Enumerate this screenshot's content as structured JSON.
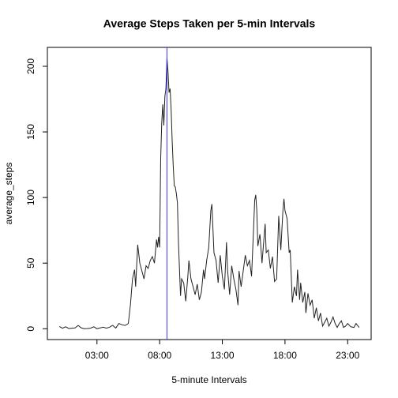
{
  "chart_data": {
    "type": "line",
    "title": "Average Steps Taken per 5-min Intervals",
    "x_label": "5-minute Intervals",
    "y_label": "average_steps",
    "x": [
      0,
      15,
      30,
      45,
      60,
      75,
      90,
      105,
      120,
      135,
      150,
      165,
      180,
      195,
      210,
      225,
      240,
      255,
      270,
      285,
      300,
      315,
      330,
      340,
      350,
      360,
      365,
      375,
      385,
      395,
      405,
      415,
      425,
      435,
      445,
      455,
      465,
      470,
      475,
      480,
      485,
      490,
      495,
      500,
      505,
      510,
      515,
      520,
      525,
      530,
      535,
      540,
      545,
      550,
      555,
      560,
      565,
      570,
      575,
      580,
      585,
      595,
      605,
      615,
      620,
      630,
      640,
      650,
      660,
      670,
      680,
      690,
      695,
      705,
      715,
      725,
      730,
      740,
      750,
      760,
      770,
      780,
      790,
      800,
      805,
      815,
      825,
      835,
      845,
      855,
      860,
      870,
      880,
      890,
      900,
      910,
      920,
      930,
      935,
      940,
      945,
      950,
      960,
      970,
      975,
      985,
      990,
      1000,
      1010,
      1020,
      1030,
      1040,
      1050,
      1060,
      1070,
      1075,
      1080,
      1090,
      1100,
      1105,
      1115,
      1125,
      1135,
      1140,
      1150,
      1155,
      1165,
      1175,
      1180,
      1190,
      1200,
      1210,
      1220,
      1230,
      1240,
      1250,
      1260,
      1270,
      1280,
      1290,
      1300,
      1310,
      1320,
      1330,
      1340,
      1350,
      1360,
      1370,
      1380,
      1395,
      1410,
      1420,
      1435
    ],
    "series": [
      {
        "name": "average_steps",
        "color": "#222222",
        "values": [
          1.7,
          0.4,
          1.5,
          0.2,
          0.4,
          0.6,
          2.5,
          0.6,
          0,
          0.2,
          0.5,
          1.5,
          0,
          0.6,
          1.2,
          0.4,
          1.2,
          2.6,
          0.5,
          4,
          3,
          2.5,
          4,
          18,
          38,
          45,
          32,
          64,
          50,
          44,
          38,
          48,
          46,
          52,
          55,
          50,
          68,
          62,
          70,
          62,
          130,
          157,
          171,
          155,
          177,
          183,
          206.17,
          196,
          180,
          183,
          167,
          143,
          124,
          109,
          108,
          103,
          96,
          66,
          45,
          25,
          38,
          35,
          21,
          40,
          52,
          38,
          32,
          26,
          34,
          22,
          28,
          45,
          38,
          52,
          62,
          90,
          95,
          58,
          52,
          35,
          56,
          40,
          30,
          66,
          45,
          26,
          48,
          38,
          30,
          18,
          44,
          32,
          44,
          56,
          48,
          52,
          40,
          78,
          98,
          102,
          90,
          63,
          72,
          50,
          60,
          80,
          58,
          60,
          46,
          55,
          36,
          38,
          86,
          60,
          90,
          99,
          90,
          84,
          58,
          60,
          20,
          32,
          25,
          45,
          22,
          35,
          20,
          28,
          12,
          27,
          18,
          22,
          8,
          16,
          6,
          12,
          2,
          5,
          8,
          2,
          5,
          9,
          4,
          1,
          4,
          6,
          1,
          2,
          4,
          1.5,
          1,
          4,
          1
        ]
      }
    ],
    "vline": {
      "x": 515,
      "color": "#3333ff"
    },
    "xlim": [
      -57.4,
      1492.4
    ],
    "xticks": [
      {
        "value": 180,
        "label": "03:00"
      },
      {
        "value": 480,
        "label": "08:00"
      },
      {
        "value": 780,
        "label": "13:00"
      },
      {
        "value": 1080,
        "label": "18:00"
      },
      {
        "value": 1380,
        "label": "23:00"
      }
    ],
    "ylim": [
      -8.25,
      214.42
    ],
    "yticks": [
      0,
      50,
      100,
      150,
      200
    ]
  }
}
